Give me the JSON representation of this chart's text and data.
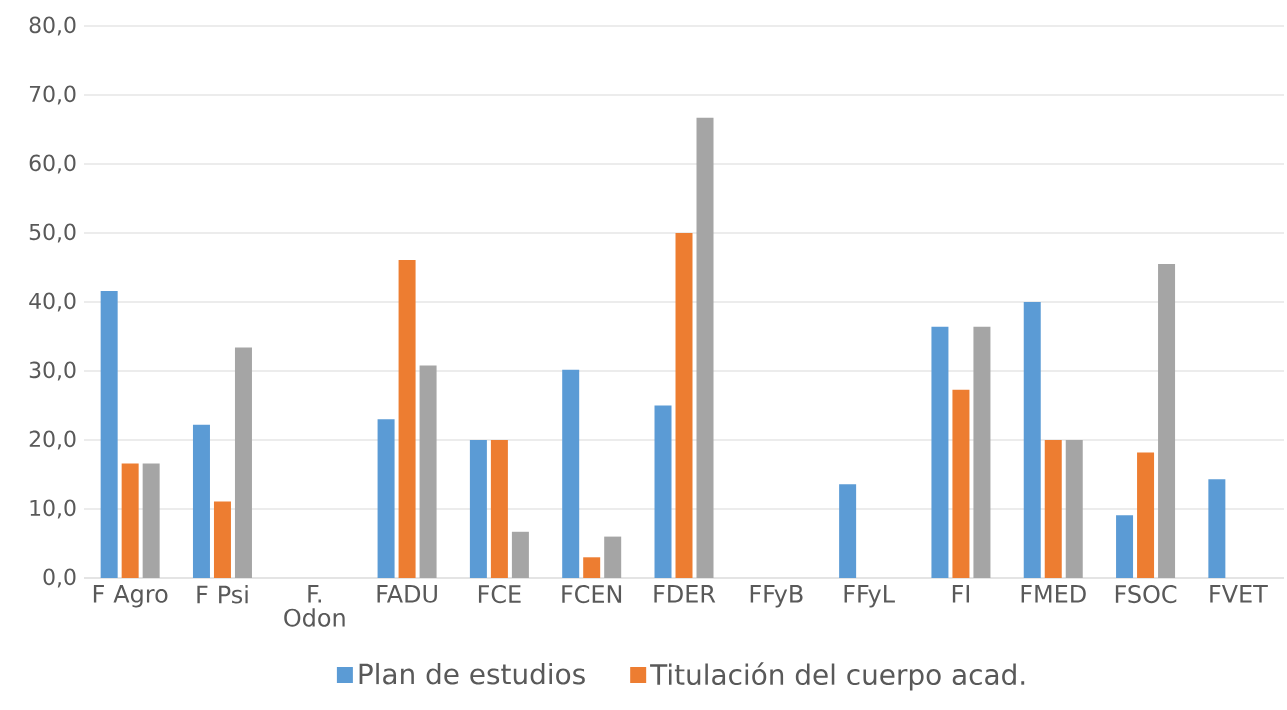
{
  "chart_data": {
    "type": "bar",
    "categories": [
      "F Agro",
      "F Psi",
      "F. Odon",
      "FADU",
      "FCE",
      "FCEN",
      "FDER",
      "FFyB",
      "FFyL",
      "FI",
      "FMED",
      "FSOC",
      "FVET"
    ],
    "series": [
      {
        "name": "Plan de estudios",
        "color": "#5b9bd5",
        "values": [
          41.6,
          22.2,
          0,
          23.0,
          20.0,
          30.2,
          25.0,
          0,
          13.6,
          36.4,
          40.0,
          9.1,
          14.3
        ]
      },
      {
        "name": "Titulación del cuerpo acad.",
        "color": "#ed7d31",
        "values": [
          16.6,
          11.1,
          0,
          46.1,
          20.0,
          3.0,
          50.0,
          0,
          0,
          27.3,
          20.0,
          18.2,
          0
        ]
      },
      {
        "color": "#a5a5a5",
        "values": [
          16.6,
          33.4,
          0,
          30.8,
          6.7,
          6.0,
          66.7,
          0,
          0,
          36.4,
          20.0,
          45.5,
          0
        ]
      }
    ],
    "ylim": [
      0,
      80
    ],
    "yticks": [
      {
        "value": 0,
        "label": "0,0"
      },
      {
        "value": 10,
        "label": "10,0"
      },
      {
        "value": 20,
        "label": "20,0"
      },
      {
        "value": 30,
        "label": "30,0"
      },
      {
        "value": 40,
        "label": "40,0"
      },
      {
        "value": 50,
        "label": "50,0"
      },
      {
        "value": 60,
        "label": "60,0"
      },
      {
        "value": 70,
        "label": "70,0"
      },
      {
        "value": 80,
        "label": "80,0"
      }
    ],
    "grid": "y",
    "legend": "bottom"
  }
}
